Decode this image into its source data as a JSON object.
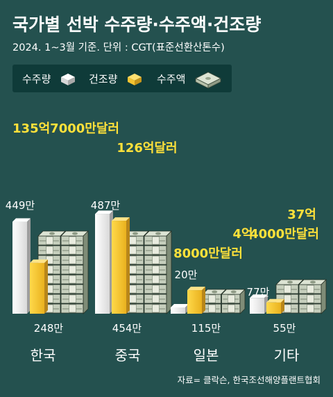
{
  "title": "국가별 선박 수주량·수주액·건조량",
  "subtitle": "2024. 1~3월 기준. 단위 : CGT(표준선환산톤수)",
  "legend": [
    {
      "label": "수주량",
      "icon": "white-block-icon"
    },
    {
      "label": "건조량",
      "icon": "yellow-block-icon"
    },
    {
      "label": "수주액",
      "icon": "money-stack-icon"
    }
  ],
  "source": "자료= 클락슨, 한국조선해양플랜트협회",
  "colors": {
    "background": "#24514f",
    "order_volume": "#e6e6e6",
    "construction_volume": "#f5c431",
    "money": "#c9d2c0",
    "highlight_text": "#ffe13a"
  },
  "chart_data": {
    "type": "bar",
    "categories": [
      "한국",
      "중국",
      "일본",
      "기타"
    ],
    "series": [
      {
        "name": "수주량",
        "values": [
          449,
          487,
          20,
          77
        ],
        "labels": [
          "449만",
          "487만",
          "20만",
          "77만"
        ]
      },
      {
        "name": "건조량",
        "values": [
          248,
          454,
          115,
          55
        ],
        "labels": [
          "248만",
          "454만",
          "115만",
          "55만"
        ]
      },
      {
        "name": "수주액",
        "values": [
          135.7,
          126,
          4.8,
          37.4
        ],
        "labels": [
          [
            "135억7000만달러"
          ],
          [
            "126억달러"
          ],
          [
            "4억",
            "8000만달러"
          ],
          [
            "37억",
            "4000만달러"
          ]
        ]
      }
    ]
  }
}
